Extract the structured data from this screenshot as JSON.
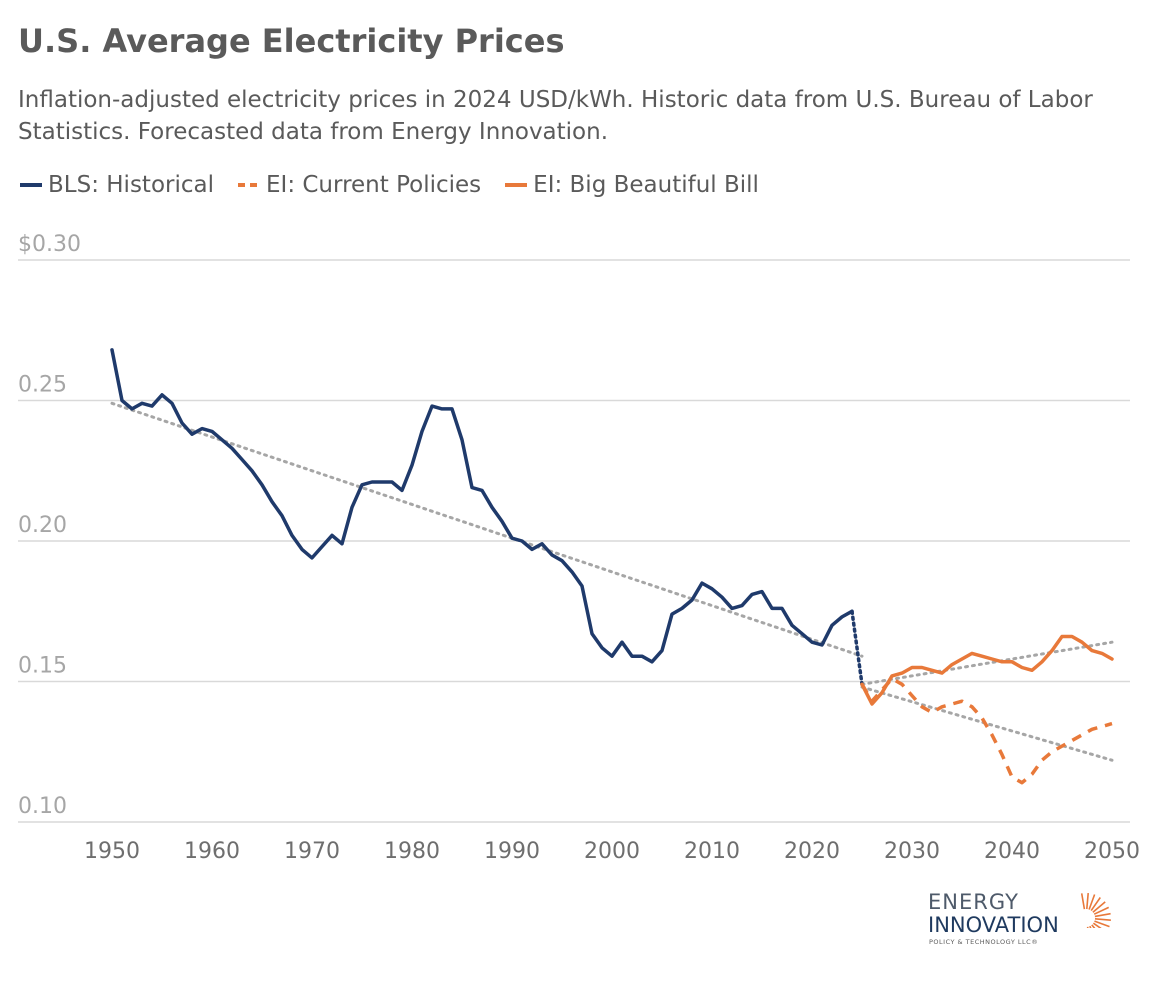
{
  "chart_data": {
    "type": "line",
    "title": "U.S. Average Electricity Prices",
    "subtitle": "Inflation-adjusted electricity prices in 2024 USD/kWh. Historic data from U.S. Bureau of Labor Statistics. Forecasted data from Energy Innovation.",
    "xlabel": "",
    "ylabel": "",
    "xlim": [
      1950,
      2050
    ],
    "ylim": [
      0.1,
      0.3
    ],
    "x_ticks": [
      "1950",
      "1960",
      "1970",
      "1980",
      "1990",
      "2000",
      "2010",
      "2020",
      "2030",
      "2040",
      "2050"
    ],
    "y_ticks": [
      {
        "value": 0.3,
        "label": "$0.30"
      },
      {
        "value": 0.25,
        "label": "0.25"
      },
      {
        "value": 0.2,
        "label": "0.20"
      },
      {
        "value": 0.15,
        "label": "0.15"
      },
      {
        "value": 0.1,
        "label": "0.10"
      }
    ],
    "grid": "horizontal",
    "legend": "top-left",
    "series": [
      {
        "name": "BLS: Historical",
        "color": "#1f3a6b",
        "style": "solid",
        "x": [
          1950,
          1951,
          1952,
          1953,
          1954,
          1955,
          1956,
          1957,
          1958,
          1959,
          1960,
          1961,
          1962,
          1963,
          1964,
          1965,
          1966,
          1967,
          1968,
          1969,
          1970,
          1971,
          1972,
          1973,
          1974,
          1975,
          1976,
          1977,
          1978,
          1979,
          1980,
          1981,
          1982,
          1983,
          1984,
          1985,
          1986,
          1987,
          1988,
          1989,
          1990,
          1991,
          1992,
          1993,
          1994,
          1995,
          1996,
          1997,
          1998,
          1999,
          2000,
          2001,
          2002,
          2003,
          2004,
          2005,
          2006,
          2007,
          2008,
          2009,
          2010,
          2011,
          2012,
          2013,
          2014,
          2015,
          2016,
          2017,
          2018,
          2019,
          2020,
          2021,
          2022,
          2023,
          2024
        ],
        "values": [
          0.268,
          0.25,
          0.247,
          0.249,
          0.248,
          0.252,
          0.249,
          0.242,
          0.238,
          0.24,
          0.239,
          0.236,
          0.233,
          0.229,
          0.225,
          0.22,
          0.214,
          0.209,
          0.202,
          0.197,
          0.194,
          0.198,
          0.202,
          0.199,
          0.212,
          0.22,
          0.221,
          0.221,
          0.221,
          0.218,
          0.227,
          0.239,
          0.248,
          0.247,
          0.247,
          0.236,
          0.219,
          0.218,
          0.212,
          0.207,
          0.201,
          0.2,
          0.197,
          0.199,
          0.195,
          0.193,
          0.189,
          0.184,
          0.167,
          0.162,
          0.159,
          0.164,
          0.159,
          0.159,
          0.157,
          0.161,
          0.174,
          0.176,
          0.179,
          0.185,
          0.183,
          0.18,
          0.176,
          0.177,
          0.181,
          0.182,
          0.176,
          0.176,
          0.17,
          0.167,
          0.164,
          0.163,
          0.17,
          0.173,
          0.175
        ]
      },
      {
        "name": "EI: Current Policies",
        "color": "#e8793a",
        "style": "dashed",
        "x": [
          2025,
          2026,
          2027,
          2028,
          2029,
          2030,
          2031,
          2032,
          2033,
          2034,
          2035,
          2036,
          2037,
          2038,
          2039,
          2040,
          2041,
          2042,
          2043,
          2044,
          2045,
          2046,
          2047,
          2048,
          2049,
          2050
        ],
        "values": [
          0.149,
          0.143,
          0.147,
          0.151,
          0.149,
          0.145,
          0.141,
          0.139,
          0.141,
          0.142,
          0.143,
          0.141,
          0.137,
          0.131,
          0.124,
          0.116,
          0.114,
          0.117,
          0.122,
          0.125,
          0.127,
          0.129,
          0.131,
          0.133,
          0.134,
          0.135
        ]
      },
      {
        "name": "EI: Big Beautiful Bill",
        "color": "#e8793a",
        "style": "solid",
        "x": [
          2025,
          2026,
          2027,
          2028,
          2029,
          2030,
          2031,
          2032,
          2033,
          2034,
          2035,
          2036,
          2037,
          2038,
          2039,
          2040,
          2041,
          2042,
          2043,
          2044,
          2045,
          2046,
          2047,
          2048,
          2049,
          2050
        ],
        "values": [
          0.149,
          0.142,
          0.146,
          0.152,
          0.153,
          0.155,
          0.155,
          0.154,
          0.153,
          0.156,
          0.158,
          0.16,
          0.159,
          0.158,
          0.157,
          0.157,
          0.155,
          0.154,
          0.157,
          0.161,
          0.166,
          0.166,
          0.164,
          0.161,
          0.16,
          0.158
        ]
      }
    ],
    "connector": {
      "x": [
        2024,
        2025
      ],
      "values": [
        0.175,
        0.149
      ],
      "color": "#1f3a6b",
      "style": "dotted"
    },
    "trendlines": [
      {
        "x": [
          1950,
          2025
        ],
        "values": [
          0.249,
          0.159
        ],
        "color": "#a6a6a6",
        "style": "dotted"
      },
      {
        "x": [
          2025,
          2050
        ],
        "values": [
          0.149,
          0.164
        ],
        "color": "#a6a6a6",
        "style": "dotted"
      },
      {
        "x": [
          2025,
          2050
        ],
        "values": [
          0.148,
          0.122
        ],
        "color": "#a6a6a6",
        "style": "dotted"
      }
    ]
  },
  "legend": {
    "items": [
      {
        "label": "BLS: Historical",
        "color": "#1f3a6b",
        "style": "solid"
      },
      {
        "label": "EI: Current Policies",
        "color": "#e8793a",
        "style": "dashed"
      },
      {
        "label": "EI: Big Beautiful Bill",
        "color": "#e8793a",
        "style": "solid"
      }
    ]
  },
  "logo": {
    "line1": "ENERGY",
    "line2": "INNOVATION",
    "line3": "POLICY & TECHNOLOGY LLC®",
    "sun_color": "#e8793a"
  }
}
